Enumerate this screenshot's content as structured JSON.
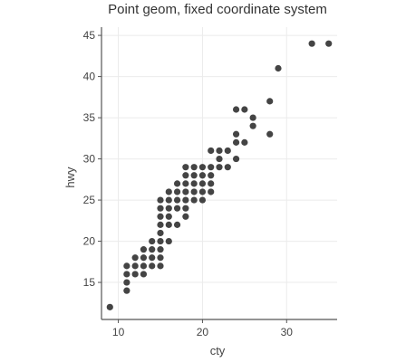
{
  "chart_data": {
    "type": "scatter",
    "title": "Point geom, fixed coordinate system",
    "xlabel": "cty",
    "ylabel": "hwy",
    "xlim": [
      8,
      36
    ],
    "ylim": [
      10.5,
      46
    ],
    "xticks": [
      10,
      20,
      30
    ],
    "yticks": [
      15,
      20,
      25,
      30,
      35,
      40,
      45
    ],
    "grid": true,
    "point_color": "#444444",
    "grid_color": "#ebebeb",
    "axis_color": "#555555",
    "points": [
      {
        "x": 9,
        "y": 12
      },
      {
        "x": 11,
        "y": 14
      },
      {
        "x": 11,
        "y": 15
      },
      {
        "x": 11,
        "y": 16
      },
      {
        "x": 11,
        "y": 17
      },
      {
        "x": 12,
        "y": 16
      },
      {
        "x": 12,
        "y": 17
      },
      {
        "x": 12,
        "y": 18
      },
      {
        "x": 13,
        "y": 16
      },
      {
        "x": 13,
        "y": 17
      },
      {
        "x": 13,
        "y": 18
      },
      {
        "x": 13,
        "y": 19
      },
      {
        "x": 14,
        "y": 17
      },
      {
        "x": 14,
        "y": 18
      },
      {
        "x": 14,
        "y": 19
      },
      {
        "x": 14,
        "y": 20
      },
      {
        "x": 15,
        "y": 17
      },
      {
        "x": 15,
        "y": 18
      },
      {
        "x": 15,
        "y": 19
      },
      {
        "x": 15,
        "y": 20
      },
      {
        "x": 15,
        "y": 21
      },
      {
        "x": 15,
        "y": 22
      },
      {
        "x": 15,
        "y": 23
      },
      {
        "x": 15,
        "y": 24
      },
      {
        "x": 15,
        "y": 25
      },
      {
        "x": 16,
        "y": 20
      },
      {
        "x": 16,
        "y": 22
      },
      {
        "x": 16,
        "y": 23
      },
      {
        "x": 16,
        "y": 24
      },
      {
        "x": 16,
        "y": 25
      },
      {
        "x": 16,
        "y": 26
      },
      {
        "x": 17,
        "y": 22
      },
      {
        "x": 17,
        "y": 24
      },
      {
        "x": 17,
        "y": 25
      },
      {
        "x": 17,
        "y": 26
      },
      {
        "x": 17,
        "y": 27
      },
      {
        "x": 18,
        "y": 23
      },
      {
        "x": 18,
        "y": 24
      },
      {
        "x": 18,
        "y": 25
      },
      {
        "x": 18,
        "y": 26
      },
      {
        "x": 18,
        "y": 27
      },
      {
        "x": 18,
        "y": 28
      },
      {
        "x": 18,
        "y": 29
      },
      {
        "x": 19,
        "y": 25
      },
      {
        "x": 19,
        "y": 26
      },
      {
        "x": 19,
        "y": 27
      },
      {
        "x": 19,
        "y": 28
      },
      {
        "x": 19,
        "y": 29
      },
      {
        "x": 20,
        "y": 25
      },
      {
        "x": 20,
        "y": 26
      },
      {
        "x": 20,
        "y": 27
      },
      {
        "x": 20,
        "y": 28
      },
      {
        "x": 20,
        "y": 29
      },
      {
        "x": 21,
        "y": 26
      },
      {
        "x": 21,
        "y": 27
      },
      {
        "x": 21,
        "y": 28
      },
      {
        "x": 21,
        "y": 29
      },
      {
        "x": 21,
        "y": 31
      },
      {
        "x": 22,
        "y": 29
      },
      {
        "x": 22,
        "y": 30
      },
      {
        "x": 22,
        "y": 31
      },
      {
        "x": 23,
        "y": 29
      },
      {
        "x": 23,
        "y": 31
      },
      {
        "x": 24,
        "y": 30
      },
      {
        "x": 24,
        "y": 32
      },
      {
        "x": 24,
        "y": 33
      },
      {
        "x": 24,
        "y": 36
      },
      {
        "x": 25,
        "y": 32
      },
      {
        "x": 25,
        "y": 36
      },
      {
        "x": 26,
        "y": 34
      },
      {
        "x": 26,
        "y": 35
      },
      {
        "x": 28,
        "y": 33
      },
      {
        "x": 28,
        "y": 37
      },
      {
        "x": 29,
        "y": 41
      },
      {
        "x": 33,
        "y": 44
      },
      {
        "x": 35,
        "y": 44
      }
    ]
  }
}
